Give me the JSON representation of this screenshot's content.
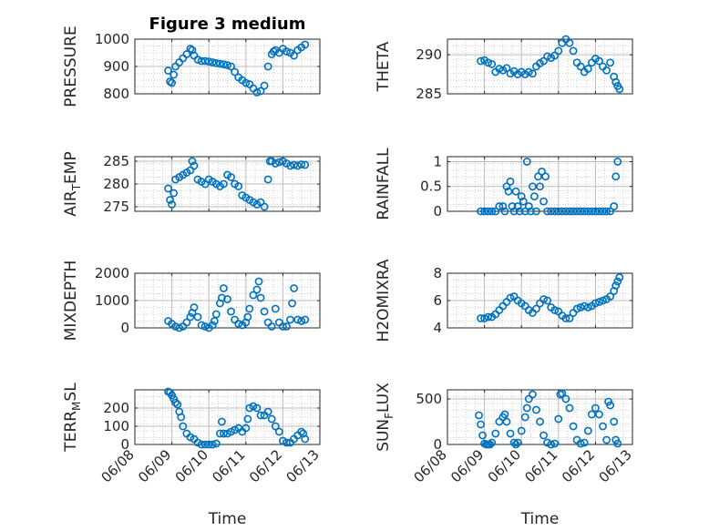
{
  "figure_title": "Figure 3 medium",
  "marker_color": "#0072BD",
  "chart_data": [
    {
      "type": "scatter",
      "ylabel": "PRESSURE",
      "ylabel_sub": "",
      "ylabel_tail": "",
      "ylim": [
        800,
        1000
      ],
      "yticks": [
        800,
        900,
        1000
      ],
      "ytick_labels": [
        "800",
        "900",
        "1000"
      ],
      "xlim": [
        0,
        5
      ],
      "xticks": [
        0,
        1,
        2,
        3,
        4,
        5
      ],
      "xtick_labels": [
        "06/08",
        "06/09",
        "06/10",
        "06/11",
        "06/12",
        "06/13"
      ],
      "show_xticklabels": false,
      "xlabel": "",
      "title": "Figure 3 medium",
      "x": [
        0.9,
        0.95,
        1.0,
        1.05,
        1.1,
        1.2,
        1.3,
        1.4,
        1.5,
        1.55,
        1.6,
        1.7,
        1.8,
        1.9,
        2.0,
        2.1,
        2.2,
        2.3,
        2.4,
        2.5,
        2.6,
        2.7,
        2.8,
        2.9,
        3.0,
        3.1,
        3.2,
        3.3,
        3.4,
        3.5,
        3.6,
        3.7,
        3.75,
        3.8,
        3.9,
        4.0,
        4.1,
        4.2,
        4.3,
        4.4,
        4.5,
        4.6
      ],
      "y": [
        885,
        845,
        840,
        870,
        900,
        915,
        930,
        945,
        965,
        960,
        940,
        925,
        920,
        920,
        918,
        915,
        912,
        910,
        908,
        905,
        900,
        880,
        860,
        850,
        840,
        835,
        820,
        805,
        810,
        830,
        900,
        945,
        955,
        960,
        950,
        965,
        955,
        950,
        940,
        960,
        970,
        980
      ]
    },
    {
      "type": "scatter",
      "ylabel": "THETA",
      "ylabel_sub": "",
      "ylabel_tail": "",
      "ylim": [
        285,
        292
      ],
      "yticks": [
        285,
        290
      ],
      "ytick_labels": [
        "285",
        "290"
      ],
      "xlim": [
        0,
        5
      ],
      "xticks": [
        0,
        1,
        2,
        3,
        4,
        5
      ],
      "xtick_labels": [
        "06/08",
        "06/09",
        "06/10",
        "06/11",
        "06/12",
        "06/13"
      ],
      "show_xticklabels": false,
      "xlabel": "",
      "x": [
        0.9,
        1.0,
        1.1,
        1.2,
        1.3,
        1.4,
        1.5,
        1.6,
        1.7,
        1.8,
        1.9,
        2.0,
        2.1,
        2.2,
        2.3,
        2.4,
        2.5,
        2.6,
        2.7,
        2.8,
        2.9,
        3.0,
        3.1,
        3.2,
        3.3,
        3.4,
        3.5,
        3.6,
        3.7,
        3.8,
        3.9,
        4.0,
        4.1,
        4.2,
        4.3,
        4.4,
        4.5,
        4.55,
        4.6,
        4.65
      ],
      "y": [
        289.2,
        289.3,
        289.0,
        288.8,
        287.8,
        288.2,
        288.0,
        288.3,
        287.6,
        287.9,
        287.5,
        287.8,
        287.5,
        287.8,
        287.6,
        288.5,
        288.9,
        289.2,
        289.8,
        289.6,
        289.9,
        290.5,
        291.5,
        292.0,
        291.5,
        290.5,
        289.0,
        288.5,
        287.8,
        288.2,
        289.0,
        289.5,
        289.2,
        288.5,
        288.0,
        289.0,
        287.2,
        286.5,
        286.0,
        285.6
      ]
    },
    {
      "type": "scatter",
      "ylabel": "AIR",
      "ylabel_sub": "T",
      "ylabel_tail": "EMP",
      "ylim": [
        274,
        286
      ],
      "yticks": [
        275,
        280,
        285
      ],
      "ytick_labels": [
        "275",
        "280",
        "285"
      ],
      "xlim": [
        0,
        5
      ],
      "xticks": [
        0,
        1,
        2,
        3,
        4,
        5
      ],
      "xtick_labels": [
        "06/08",
        "06/09",
        "06/10",
        "06/11",
        "06/12",
        "06/13"
      ],
      "show_xticklabels": false,
      "xlabel": "",
      "x": [
        0.9,
        0.95,
        1.0,
        1.05,
        1.1,
        1.2,
        1.3,
        1.4,
        1.5,
        1.55,
        1.6,
        1.7,
        1.8,
        1.9,
        2.0,
        2.1,
        2.2,
        2.3,
        2.4,
        2.5,
        2.6,
        2.7,
        2.8,
        2.9,
        3.0,
        3.1,
        3.2,
        3.3,
        3.4,
        3.5,
        3.6,
        3.65,
        3.7,
        3.8,
        3.9,
        4.0,
        4.1,
        4.2,
        4.3,
        4.4,
        4.5,
        4.6
      ],
      "y": [
        279,
        276.5,
        275.5,
        278,
        281,
        281.5,
        282,
        282.5,
        283,
        285,
        284,
        281,
        280.5,
        280,
        281,
        280.5,
        280,
        279.5,
        280,
        282,
        281.5,
        280,
        279.5,
        277.5,
        277,
        276.5,
        276,
        275.5,
        276,
        275,
        281,
        285,
        285,
        284.5,
        284.8,
        285,
        284.5,
        284,
        284.2,
        284.0,
        284.3,
        284.2
      ]
    },
    {
      "type": "scatter",
      "ylabel": "RAINFALL",
      "ylabel_sub": "",
      "ylabel_tail": "",
      "ylim": [
        0,
        1.1
      ],
      "yticks": [
        0,
        0.5,
        1
      ],
      "ytick_labels": [
        "0",
        "0.5",
        "1"
      ],
      "xlim": [
        0,
        5
      ],
      "xticks": [
        0,
        1,
        2,
        3,
        4,
        5
      ],
      "xtick_labels": [
        "06/08",
        "06/09",
        "06/10",
        "06/11",
        "06/12",
        "06/13"
      ],
      "show_xticklabels": false,
      "xlabel": "",
      "x": [
        0.9,
        1.0,
        1.1,
        1.2,
        1.3,
        1.4,
        1.5,
        1.55,
        1.6,
        1.65,
        1.7,
        1.75,
        1.8,
        1.85,
        1.9,
        1.95,
        2.0,
        2.05,
        2.1,
        2.15,
        2.2,
        2.25,
        2.3,
        2.35,
        2.4,
        2.45,
        2.5,
        2.55,
        2.6,
        2.65,
        2.7,
        2.8,
        2.9,
        3.0,
        3.1,
        3.2,
        3.3,
        3.4,
        3.5,
        3.6,
        3.7,
        3.8,
        3.9,
        4.0,
        4.1,
        4.2,
        4.3,
        4.4,
        4.5,
        4.55,
        4.6
      ],
      "y": [
        0,
        0,
        0,
        0,
        0,
        0.1,
        0.1,
        0,
        0.5,
        0.4,
        0.6,
        0.1,
        0,
        0.4,
        0.1,
        0,
        0.3,
        0.2,
        0,
        1.0,
        0.1,
        0,
        0.5,
        0.3,
        0,
        0.7,
        0.5,
        0.8,
        0.2,
        0.7,
        0,
        0,
        0,
        0,
        0,
        0,
        0,
        0,
        0,
        0,
        0,
        0,
        0,
        0,
        0,
        0,
        0,
        0,
        0.1,
        0.7,
        1.0
      ]
    },
    {
      "type": "scatter",
      "ylabel": "MIXDEPTH",
      "ylabel_sub": "",
      "ylabel_tail": "",
      "ylim": [
        0,
        2000
      ],
      "yticks": [
        0,
        1000,
        2000
      ],
      "ytick_labels": [
        "0",
        "1000",
        "2000"
      ],
      "xlim": [
        0,
        5
      ],
      "xticks": [
        0,
        1,
        2,
        3,
        4,
        5
      ],
      "xtick_labels": [
        "06/08",
        "06/09",
        "06/10",
        "06/11",
        "06/12",
        "06/13"
      ],
      "show_xticklabels": false,
      "xlabel": "",
      "x": [
        0.9,
        1.0,
        1.1,
        1.2,
        1.3,
        1.4,
        1.5,
        1.55,
        1.6,
        1.7,
        1.8,
        1.9,
        2.0,
        2.1,
        2.15,
        2.2,
        2.3,
        2.35,
        2.4,
        2.5,
        2.6,
        2.7,
        2.8,
        2.9,
        3.0,
        3.05,
        3.1,
        3.2,
        3.3,
        3.35,
        3.4,
        3.5,
        3.6,
        3.7,
        3.8,
        3.9,
        4.0,
        4.1,
        4.2,
        4.25,
        4.3,
        4.4,
        4.5,
        4.6
      ],
      "y": [
        250,
        150,
        50,
        0,
        50,
        200,
        400,
        550,
        750,
        400,
        100,
        50,
        0,
        100,
        250,
        500,
        900,
        1100,
        1450,
        1050,
        600,
        300,
        150,
        100,
        200,
        400,
        700,
        1200,
        1400,
        1700,
        1100,
        600,
        200,
        50,
        700,
        200,
        50,
        50,
        300,
        900,
        1450,
        300,
        250,
        300
      ]
    },
    {
      "type": "scatter",
      "ylabel": "H2OMIXRA",
      "ylabel_sub": "",
      "ylabel_tail": "",
      "ylim": [
        4,
        8
      ],
      "yticks": [
        4,
        6,
        8
      ],
      "ytick_labels": [
        "4",
        "6",
        "8"
      ],
      "xlim": [
        0,
        5
      ],
      "xticks": [
        0,
        1,
        2,
        3,
        4,
        5
      ],
      "xtick_labels": [
        "06/08",
        "06/09",
        "06/10",
        "06/11",
        "06/12",
        "06/13"
      ],
      "show_xticklabels": false,
      "xlabel": "",
      "x": [
        0.9,
        1.0,
        1.1,
        1.2,
        1.3,
        1.4,
        1.5,
        1.6,
        1.7,
        1.8,
        1.9,
        2.0,
        2.1,
        2.2,
        2.3,
        2.4,
        2.5,
        2.6,
        2.7,
        2.8,
        2.9,
        3.0,
        3.1,
        3.2,
        3.3,
        3.4,
        3.5,
        3.6,
        3.7,
        3.8,
        3.9,
        4.0,
        4.1,
        4.2,
        4.3,
        4.4,
        4.5,
        4.55,
        4.6,
        4.65
      ],
      "y": [
        4.7,
        4.7,
        4.8,
        4.8,
        5.0,
        5.3,
        5.6,
        5.9,
        6.2,
        6.3,
        6.0,
        5.8,
        5.6,
        5.3,
        5.1,
        5.4,
        5.8,
        6.1,
        6.0,
        5.5,
        5.3,
        5.2,
        4.9,
        4.7,
        4.7,
        5.1,
        5.4,
        5.5,
        5.6,
        5.5,
        5.6,
        5.8,
        5.9,
        6.0,
        6.1,
        6.3,
        6.7,
        7.1,
        7.4,
        7.7
      ]
    },
    {
      "type": "scatter",
      "ylabel": "TERR",
      "ylabel_sub": "M",
      "ylabel_tail": "SL",
      "ylim": [
        0,
        300
      ],
      "yticks": [
        0,
        100,
        200
      ],
      "ytick_labels": [
        "0",
        "100",
        "200"
      ],
      "xlim": [
        0,
        5
      ],
      "xticks": [
        0,
        1,
        2,
        3,
        4,
        5
      ],
      "xtick_labels": [
        "06/08",
        "06/09",
        "06/10",
        "06/11",
        "06/12",
        "06/13"
      ],
      "show_xticklabels": true,
      "xlabel": "Time",
      "x": [
        0.9,
        0.95,
        1.0,
        1.05,
        1.1,
        1.15,
        1.2,
        1.25,
        1.3,
        1.4,
        1.5,
        1.6,
        1.7,
        1.8,
        1.9,
        2.0,
        2.1,
        2.2,
        2.3,
        2.35,
        2.4,
        2.5,
        2.6,
        2.7,
        2.8,
        2.9,
        3.0,
        3.05,
        3.1,
        3.2,
        3.3,
        3.4,
        3.5,
        3.6,
        3.7,
        3.8,
        3.9,
        4.0,
        4.1,
        4.2,
        4.3,
        4.4,
        4.5,
        4.55,
        4.6
      ],
      "y": [
        290,
        285,
        270,
        250,
        230,
        220,
        180,
        150,
        100,
        60,
        40,
        30,
        10,
        0,
        0,
        0,
        0,
        5,
        60,
        125,
        60,
        60,
        70,
        80,
        90,
        70,
        90,
        140,
        200,
        210,
        200,
        160,
        160,
        180,
        140,
        100,
        70,
        20,
        10,
        10,
        30,
        50,
        70,
        60,
        30
      ]
    },
    {
      "type": "scatter",
      "ylabel": "SUN",
      "ylabel_sub": "F",
      "ylabel_tail": "LUX",
      "ylim": [
        0,
        600
      ],
      "yticks": [
        0,
        500
      ],
      "ytick_labels": [
        "0",
        "500"
      ],
      "xlim": [
        0,
        5
      ],
      "xticks": [
        0,
        1,
        2,
        3,
        4,
        5
      ],
      "xtick_labels": [
        "06/08",
        "06/09",
        "06/10",
        "06/11",
        "06/12",
        "06/13"
      ],
      "show_xticklabels": true,
      "xlabel": "Time",
      "x": [
        0.85,
        0.9,
        0.95,
        1.0,
        1.05,
        1.1,
        1.15,
        1.2,
        1.3,
        1.4,
        1.5,
        1.55,
        1.6,
        1.7,
        1.8,
        1.85,
        1.9,
        2.0,
        2.1,
        2.15,
        2.2,
        2.3,
        2.4,
        2.5,
        2.6,
        2.7,
        2.8,
        2.9,
        3.0,
        3.05,
        3.1,
        3.2,
        3.3,
        3.4,
        3.5,
        3.6,
        3.7,
        3.8,
        3.9,
        4.0,
        4.1,
        4.2,
        4.3,
        4.35,
        4.4,
        4.5,
        4.55,
        4.6
      ],
      "y": [
        320,
        220,
        100,
        10,
        0,
        0,
        0,
        20,
        120,
        250,
        300,
        330,
        250,
        120,
        20,
        0,
        20,
        150,
        300,
        400,
        500,
        550,
        380,
        250,
        100,
        20,
        0,
        10,
        280,
        550,
        560,
        500,
        400,
        200,
        50,
        10,
        20,
        150,
        330,
        400,
        330,
        200,
        50,
        470,
        430,
        250,
        50,
        10
      ]
    }
  ]
}
